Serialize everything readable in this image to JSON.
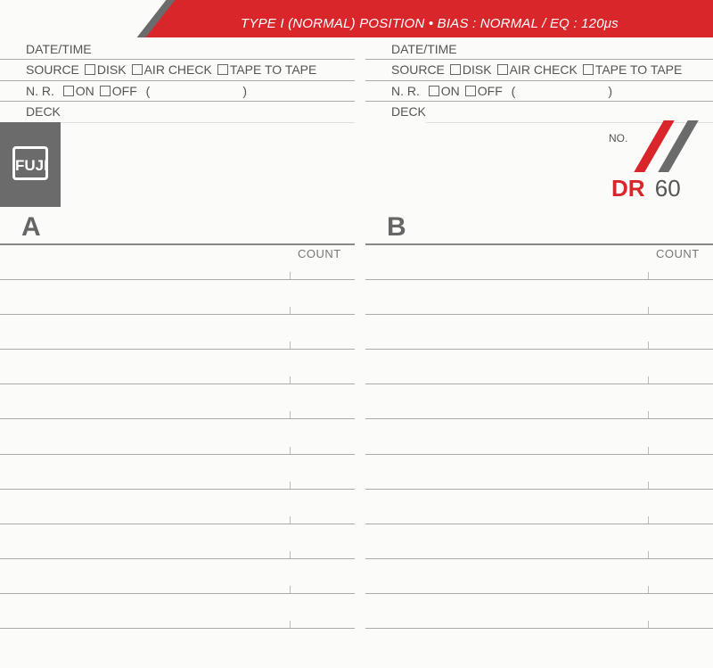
{
  "header": {
    "spec_text": "TYPE I (NORMAL) POSITION • BIAS : NORMAL / EQ : 120μs",
    "accent_color": "#d8262b",
    "gray_color": "#6b6b6b"
  },
  "form": {
    "date_time": "DATE/TIME",
    "source": "SOURCE",
    "source_options": [
      "DISK",
      "AIR CHECK",
      "TAPE TO TAPE"
    ],
    "nr": "N. R.",
    "nr_options": [
      "ON",
      "OFF"
    ],
    "nr_paren_open": "(",
    "nr_paren_close": ")",
    "deck": "DECK"
  },
  "brand": {
    "logo_text": "FUJI",
    "no_label": "NO.",
    "model_dr": "DR",
    "model_num": "60"
  },
  "sides": [
    {
      "label": "A",
      "count_label": "COUNT"
    },
    {
      "label": "B",
      "count_label": "COUNT"
    }
  ]
}
